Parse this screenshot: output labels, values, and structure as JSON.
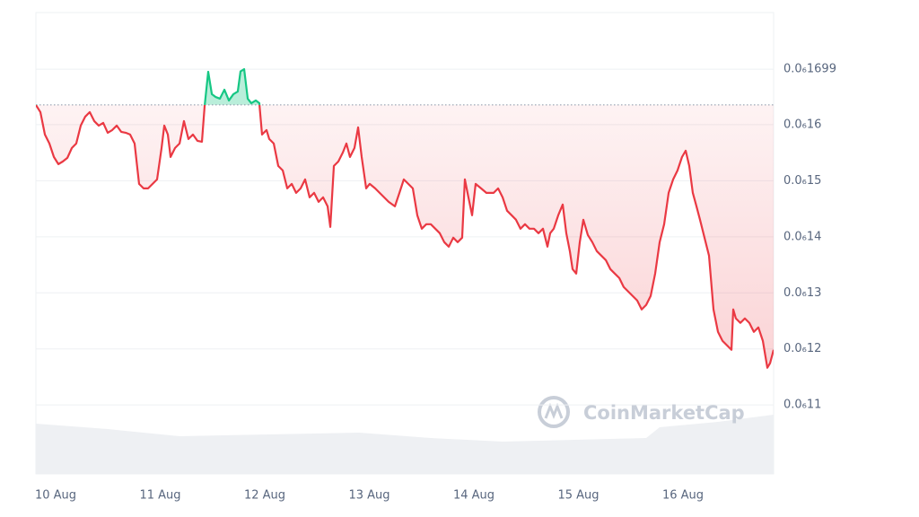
{
  "chart_data": {
    "type": "line",
    "watermark": "CoinMarketCap",
    "color_down": "#ea3943",
    "color_up": "#16c784",
    "baseline": 1.6352e-07,
    "grid": true,
    "xlim": [
      -0.189,
      6.867
    ],
    "ylim": [
      9.77e-08,
      1.8e-07
    ],
    "xticks": [
      {
        "value": 0,
        "label": "10 Aug"
      },
      {
        "value": 1,
        "label": "11 Aug"
      },
      {
        "value": 2,
        "label": "12 Aug"
      },
      {
        "value": 3,
        "label": "13 Aug"
      },
      {
        "value": 4,
        "label": "14 Aug"
      },
      {
        "value": 5,
        "label": "15 Aug"
      },
      {
        "value": 6,
        "label": "16 Aug"
      }
    ],
    "yticks": [
      {
        "value": 1.1e-07,
        "label": "0.0₆11"
      },
      {
        "value": 1.2e-07,
        "label": "0.0₆12"
      },
      {
        "value": 1.3e-07,
        "label": "0.0₆13"
      },
      {
        "value": 1.4e-07,
        "label": "0.0₆14"
      },
      {
        "value": 1.5e-07,
        "label": "0.0₆15"
      },
      {
        "value": 1.6e-07,
        "label": "0.0₆16"
      },
      {
        "value": 1.699e-07,
        "label": "0.0₆1699"
      }
    ],
    "x": [
      -0.189,
      -0.146,
      -0.103,
      -0.06,
      -0.017,
      0.026,
      0.069,
      0.112,
      0.155,
      0.197,
      0.24,
      0.283,
      0.326,
      0.369,
      0.412,
      0.455,
      0.498,
      0.541,
      0.584,
      0.627,
      0.67,
      0.712,
      0.755,
      0.798,
      0.841,
      0.884,
      0.927,
      0.97,
      1.013,
      1.039,
      1.073,
      1.099,
      1.142,
      1.185,
      1.227,
      1.27,
      1.313,
      1.356,
      1.399,
      1.425,
      1.459,
      1.494,
      1.528,
      1.571,
      1.614,
      1.657,
      1.7,
      1.742,
      1.768,
      1.803,
      1.837,
      1.871,
      1.914,
      1.948,
      1.974,
      2.017,
      2.043,
      2.086,
      2.129,
      2.172,
      2.215,
      2.258,
      2.3,
      2.343,
      2.386,
      2.429,
      2.472,
      2.515,
      2.558,
      2.601,
      2.627,
      2.661,
      2.704,
      2.747,
      2.781,
      2.815,
      2.858,
      2.893,
      2.927,
      2.97,
      3.004,
      3.056,
      3.099,
      3.142,
      3.185,
      3.245,
      3.288,
      3.33,
      3.373,
      3.416,
      3.459,
      3.502,
      3.545,
      3.588,
      3.631,
      3.674,
      3.717,
      3.76,
      3.803,
      3.845,
      3.888,
      3.914,
      3.948,
      3.983,
      4.017,
      4.069,
      4.12,
      4.189,
      4.232,
      4.275,
      4.318,
      4.361,
      4.403,
      4.446,
      4.489,
      4.532,
      4.575,
      4.618,
      4.661,
      4.704,
      4.73,
      4.764,
      4.807,
      4.85,
      4.884,
      4.918,
      4.944,
      4.979,
      5.013,
      5.047,
      5.09,
      5.133,
      5.176,
      5.219,
      5.262,
      5.305,
      5.348,
      5.391,
      5.433,
      5.476,
      5.519,
      5.562,
      5.605,
      5.648,
      5.691,
      5.734,
      5.777,
      5.82,
      5.863,
      5.906,
      5.948,
      5.991,
      6.026,
      6.06,
      6.094,
      6.129,
      6.163,
      6.206,
      6.249,
      6.292,
      6.335,
      6.378,
      6.421,
      6.464,
      6.481,
      6.506,
      6.549,
      6.592,
      6.635,
      6.678,
      6.721,
      6.764,
      6.807,
      6.833,
      6.867
    ],
    "values": [
      1.6352e-07,
      1.6224e-07,
      1.5824e-07,
      1.5664e-07,
      1.5424e-07,
      1.5296e-07,
      1.5344e-07,
      1.5408e-07,
      1.5584e-07,
      1.5664e-07,
      1.5984e-07,
      1.6144e-07,
      1.6224e-07,
      1.6064e-07,
      1.5984e-07,
      1.6032e-07,
      1.5856e-07,
      1.5904e-07,
      1.5984e-07,
      1.5872e-07,
      1.5856e-07,
      1.5824e-07,
      1.5664e-07,
      1.4944e-07,
      1.4864e-07,
      1.4864e-07,
      1.4944e-07,
      1.5024e-07,
      1.5584e-07,
      1.5984e-07,
      1.5824e-07,
      1.5424e-07,
      1.5584e-07,
      1.5664e-07,
      1.6064e-07,
      1.5744e-07,
      1.5824e-07,
      1.5712e-07,
      1.5696e-07,
      1.6336e-07,
      1.6944e-07,
      1.6544e-07,
      1.6496e-07,
      1.6464e-07,
      1.6624e-07,
      1.6432e-07,
      1.6544e-07,
      1.6592e-07,
      1.695e-07,
      1.699e-07,
      1.6464e-07,
      1.6384e-07,
      1.6432e-07,
      1.6384e-07,
      1.5824e-07,
      1.5904e-07,
      1.5744e-07,
      1.5664e-07,
      1.5264e-07,
      1.5184e-07,
      1.4864e-07,
      1.4944e-07,
      1.4784e-07,
      1.4864e-07,
      1.5024e-07,
      1.4704e-07,
      1.4784e-07,
      1.4624e-07,
      1.4704e-07,
      1.4544e-07,
      1.4176e-07,
      1.5264e-07,
      1.5344e-07,
      1.5504e-07,
      1.5664e-07,
      1.5424e-07,
      1.5584e-07,
      1.5952e-07,
      1.5424e-07,
      1.4864e-07,
      1.4944e-07,
      1.4864e-07,
      1.4784e-07,
      1.4704e-07,
      1.4624e-07,
      1.4544e-07,
      1.4784e-07,
      1.5024e-07,
      1.4944e-07,
      1.4864e-07,
      1.4384e-07,
      1.4144e-07,
      1.4224e-07,
      1.4224e-07,
      1.4144e-07,
      1.4064e-07,
      1.3904e-07,
      1.3824e-07,
      1.3984e-07,
      1.3904e-07,
      1.3984e-07,
      1.5024e-07,
      1.4704e-07,
      1.4384e-07,
      1.4944e-07,
      1.4864e-07,
      1.4784e-07,
      1.4784e-07,
      1.4864e-07,
      1.4704e-07,
      1.4464e-07,
      1.4384e-07,
      1.4304e-07,
      1.4144e-07,
      1.4224e-07,
      1.4144e-07,
      1.4144e-07,
      1.4064e-07,
      1.4144e-07,
      1.3824e-07,
      1.4064e-07,
      1.4144e-07,
      1.4384e-07,
      1.4576e-07,
      1.4064e-07,
      1.3744e-07,
      1.3424e-07,
      1.3344e-07,
      1.3904e-07,
      1.4304e-07,
      1.4032e-07,
      1.3904e-07,
      1.3744e-07,
      1.3664e-07,
      1.3584e-07,
      1.3424e-07,
      1.3344e-07,
      1.3264e-07,
      1.3104e-07,
      1.3024e-07,
      1.2944e-07,
      1.2864e-07,
      1.2704e-07,
      1.2784e-07,
      1.2944e-07,
      1.3344e-07,
      1.3904e-07,
      1.4224e-07,
      1.4784e-07,
      1.5024e-07,
      1.5184e-07,
      1.5424e-07,
      1.5536e-07,
      1.5264e-07,
      1.4784e-07,
      1.4544e-07,
      1.4304e-07,
      1.3984e-07,
      1.3664e-07,
      1.2704e-07,
      1.2304e-07,
      1.2144e-07,
      1.2064e-07,
      1.1984e-07,
      1.2704e-07,
      1.2544e-07,
      1.2464e-07,
      1.2544e-07,
      1.2464e-07,
      1.2304e-07,
      1.2384e-07,
      1.2144e-07,
      1.1664e-07,
      1.1744e-07,
      1.1984e-07
    ]
  }
}
